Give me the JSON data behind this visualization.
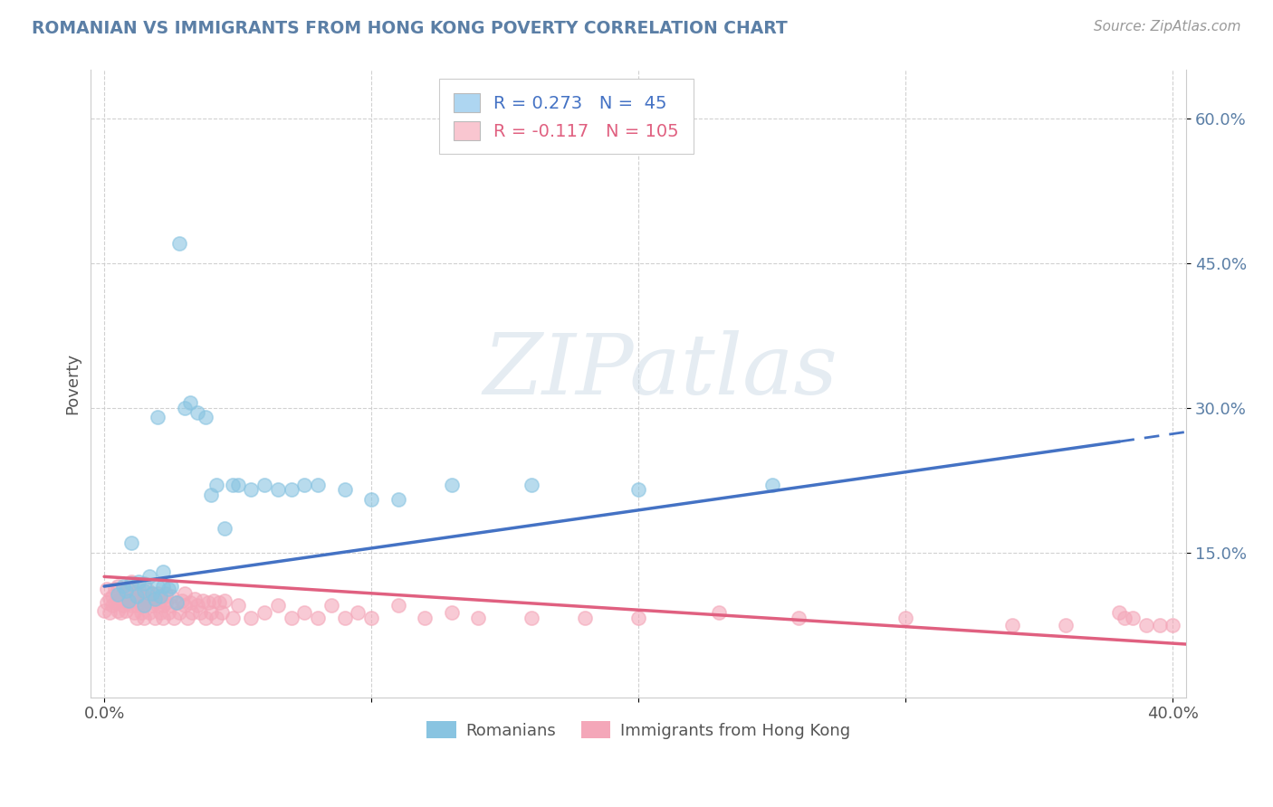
{
  "title": "ROMANIAN VS IMMIGRANTS FROM HONG KONG POVERTY CORRELATION CHART",
  "source": "Source: ZipAtlas.com",
  "ylabel": "Poverty",
  "ytick_values": [
    0.15,
    0.3,
    0.45,
    0.6
  ],
  "ytick_labels": [
    "15.0%",
    "30.0%",
    "45.0%",
    "60.0%"
  ],
  "xtick_values": [
    0.0,
    0.1,
    0.2,
    0.3,
    0.4
  ],
  "xtick_labels": [
    "0.0%",
    "",
    "",
    "",
    "40.0%"
  ],
  "legend_r1": "R = 0.273",
  "legend_n1": "N =  45",
  "legend_r2": "R = -0.117",
  "legend_n2": "N = 105",
  "color_romanian": "#89C4E1",
  "color_hk": "#F4A7B9",
  "color_line_romanian": "#4472C4",
  "color_line_hk": "#e06080",
  "color_legend_box_romanian": "#aed6f1",
  "color_legend_box_hk": "#f9c6d0",
  "xlim": [
    -0.005,
    0.405
  ],
  "ylim": [
    0.0,
    0.65
  ],
  "background": "#ffffff",
  "grid_color": "#cccccc",
  "title_color": "#5b7fa6",
  "source_color": "#999999",
  "watermark": "ZIPatlas",
  "rom_line": [
    0.0,
    0.115,
    0.38,
    0.265
  ],
  "rom_dash": [
    0.38,
    0.265,
    0.405,
    0.275
  ],
  "hk_line": [
    0.0,
    0.125,
    0.405,
    0.055
  ],
  "romanians": {
    "x": [
      0.005,
      0.007,
      0.008,
      0.009,
      0.01,
      0.01,
      0.012,
      0.013,
      0.015,
      0.015,
      0.015,
      0.017,
      0.018,
      0.019,
      0.02,
      0.02,
      0.021,
      0.022,
      0.022,
      0.024,
      0.025,
      0.027,
      0.028,
      0.03,
      0.032,
      0.035,
      0.038,
      0.04,
      0.042,
      0.045,
      0.048,
      0.05,
      0.055,
      0.06,
      0.065,
      0.07,
      0.075,
      0.08,
      0.09,
      0.1,
      0.11,
      0.13,
      0.16,
      0.2,
      0.25
    ],
    "y": [
      0.107,
      0.115,
      0.11,
      0.1,
      0.16,
      0.118,
      0.105,
      0.12,
      0.118,
      0.11,
      0.095,
      0.125,
      0.108,
      0.102,
      0.29,
      0.115,
      0.105,
      0.13,
      0.115,
      0.112,
      0.115,
      0.098,
      0.47,
      0.3,
      0.305,
      0.295,
      0.29,
      0.21,
      0.22,
      0.175,
      0.22,
      0.22,
      0.215,
      0.22,
      0.215,
      0.215,
      0.22,
      0.22,
      0.215,
      0.205,
      0.205,
      0.22,
      0.22,
      0.215,
      0.22
    ]
  },
  "hk": {
    "x": [
      0.0,
      0.001,
      0.001,
      0.002,
      0.002,
      0.003,
      0.003,
      0.004,
      0.004,
      0.005,
      0.005,
      0.005,
      0.006,
      0.006,
      0.007,
      0.007,
      0.008,
      0.008,
      0.009,
      0.009,
      0.01,
      0.01,
      0.01,
      0.011,
      0.011,
      0.012,
      0.012,
      0.012,
      0.013,
      0.013,
      0.014,
      0.014,
      0.015,
      0.015,
      0.015,
      0.016,
      0.016,
      0.017,
      0.017,
      0.018,
      0.018,
      0.019,
      0.019,
      0.02,
      0.02,
      0.021,
      0.021,
      0.022,
      0.022,
      0.023,
      0.023,
      0.024,
      0.025,
      0.025,
      0.026,
      0.027,
      0.028,
      0.029,
      0.03,
      0.03,
      0.031,
      0.032,
      0.033,
      0.034,
      0.035,
      0.036,
      0.037,
      0.038,
      0.039,
      0.04,
      0.041,
      0.042,
      0.043,
      0.044,
      0.045,
      0.048,
      0.05,
      0.055,
      0.06,
      0.065,
      0.07,
      0.075,
      0.08,
      0.085,
      0.09,
      0.095,
      0.1,
      0.11,
      0.12,
      0.13,
      0.14,
      0.16,
      0.18,
      0.2,
      0.23,
      0.26,
      0.3,
      0.34,
      0.36,
      0.38,
      0.382,
      0.385,
      0.39,
      0.395,
      0.4
    ],
    "y": [
      0.09,
      0.098,
      0.112,
      0.102,
      0.088,
      0.095,
      0.105,
      0.098,
      0.112,
      0.09,
      0.1,
      0.115,
      0.088,
      0.102,
      0.095,
      0.108,
      0.09,
      0.1,
      0.098,
      0.112,
      0.095,
      0.108,
      0.12,
      0.088,
      0.102,
      0.095,
      0.108,
      0.082,
      0.098,
      0.112,
      0.088,
      0.102,
      0.095,
      0.105,
      0.082,
      0.1,
      0.112,
      0.088,
      0.102,
      0.095,
      0.108,
      0.082,
      0.1,
      0.095,
      0.108,
      0.088,
      0.1,
      0.095,
      0.082,
      0.098,
      0.108,
      0.088,
      0.095,
      0.105,
      0.082,
      0.098,
      0.088,
      0.1,
      0.095,
      0.108,
      0.082,
      0.098,
      0.088,
      0.102,
      0.095,
      0.088,
      0.1,
      0.082,
      0.098,
      0.088,
      0.1,
      0.082,
      0.098,
      0.088,
      0.1,
      0.082,
      0.095,
      0.082,
      0.088,
      0.095,
      0.082,
      0.088,
      0.082,
      0.095,
      0.082,
      0.088,
      0.082,
      0.095,
      0.082,
      0.088,
      0.082,
      0.082,
      0.082,
      0.082,
      0.088,
      0.082,
      0.082,
      0.075,
      0.075,
      0.088,
      0.082,
      0.082,
      0.075,
      0.075,
      0.075
    ]
  }
}
